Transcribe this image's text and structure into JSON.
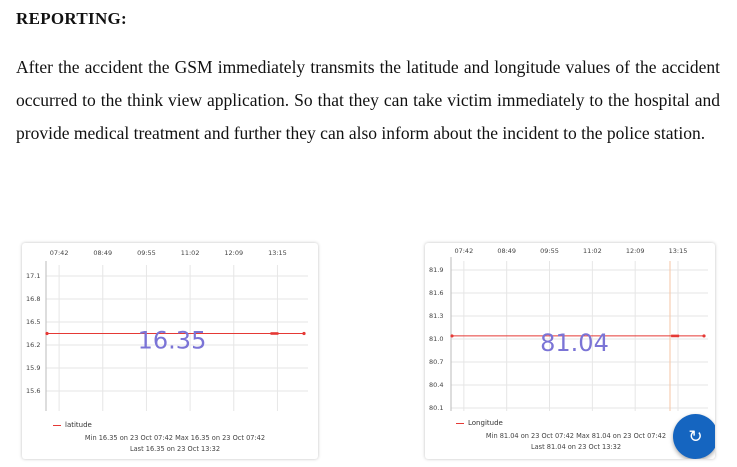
{
  "document": {
    "heading": "REPORTING:",
    "paragraph": "After the accident the GSM immediately transmits the latitude and longitude values of the accident occurred to the think view application. So that they can take victim immediately to the hospital and provide medical treatment and further they can also inform about the incident to the police station."
  },
  "colors": {
    "series": "#e53935",
    "value_text": "#7b74d6",
    "grid": "#e6e6e6",
    "fab": "#1565c0"
  },
  "chart_data": [
    {
      "type": "line",
      "title": "",
      "x_ticks": [
        "07:42",
        "08:49",
        "09:55",
        "11:02",
        "12:09",
        "13:15"
      ],
      "y_ticks": [
        "17.1",
        "16.8",
        "16.5",
        "16.2",
        "15.9",
        "15.6"
      ],
      "series": [
        {
          "name": "latitude",
          "values": [
            16.35,
            16.35
          ]
        }
      ],
      "current_value": "16.35",
      "stats_line1": "Min  16.35 on 23 Oct 07:42   Max  16.35 on 23 Oct 07:42",
      "stats_line2": "Last  16.35 on 23 Oct 13:32",
      "grid": true,
      "legend_position": "bottom-left"
    },
    {
      "type": "line",
      "title": "",
      "x_ticks": [
        "07:42",
        "08:49",
        "09:55",
        "11:02",
        "12:09",
        "13:15"
      ],
      "y_ticks": [
        "81.9",
        "81.6",
        "81.3",
        "81.0",
        "80.7",
        "80.4",
        "80.1"
      ],
      "series": [
        {
          "name": "Longitude",
          "values": [
            81.04,
            81.04
          ]
        }
      ],
      "current_value": "81.04",
      "stats_line1": "Min  81.04 on 23 Oct 07:42   Max  81.04 on 23 Oct 07:42",
      "stats_line2": "Last  81.04 on 23 Oct 13:32",
      "grid": true,
      "legend_position": "bottom-left"
    }
  ],
  "fab_icon": "refresh-icon"
}
